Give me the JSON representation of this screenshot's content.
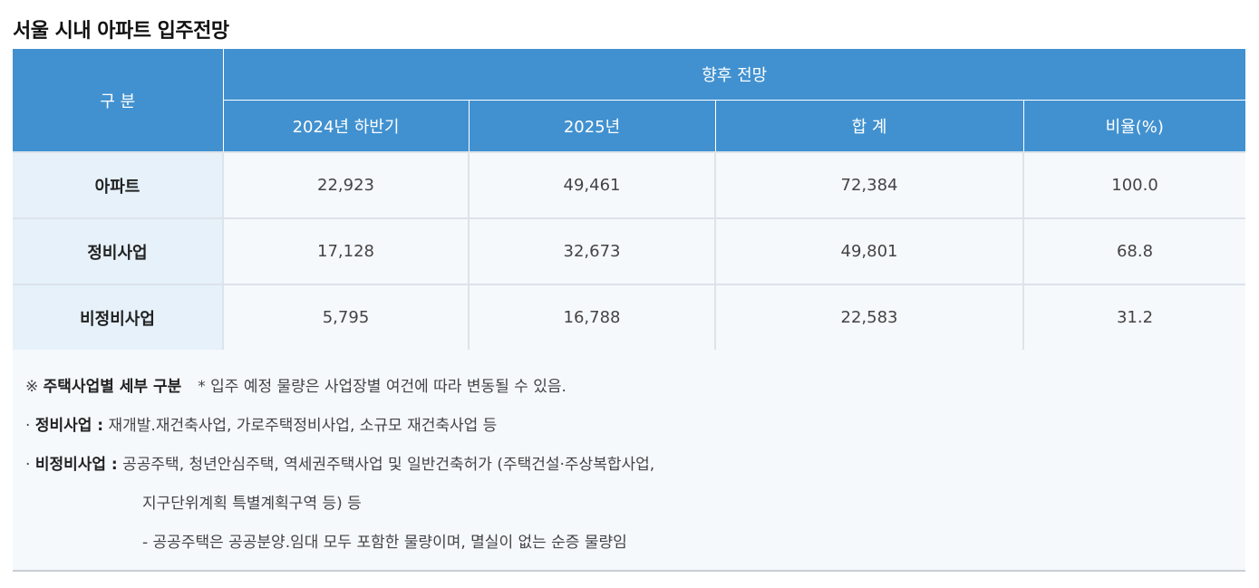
{
  "title": "서울 시내 아파트 입주전망",
  "table": {
    "header_gubun": "구 분",
    "header_future": "향후 전망",
    "columns": [
      "2024년 하반기",
      "2025년",
      "합 계",
      "비율(%)"
    ],
    "rows": [
      {
        "label": "아파트",
        "values": [
          "22,923",
          "49,461",
          "72,384",
          "100.0"
        ]
      },
      {
        "label": "정비사업",
        "values": [
          "17,128",
          "32,673",
          "49,801",
          "68.8"
        ]
      },
      {
        "label": "비정비사업",
        "values": [
          "5,795",
          "16,788",
          "22,583",
          "31.2"
        ]
      }
    ]
  },
  "notes": {
    "line1_prefix": "※ ",
    "line1_bold": "주택사업별 세부 구분",
    "line1_text": "* 입주 예정 물량은 사업장별 여건에 따라 변동될 수 있음.",
    "line2_bullet": "· ",
    "line2_bold": "정비사업 :",
    "line2_text": " 재개발.재건축사업, 가로주택정비사업, 소규모 재건축사업 등",
    "line3_bullet": "· ",
    "line3_bold": "비정비사업 :",
    "line3_text": " 공공주택, 청년안심주택, 역세권주택사업 및 일반건축허가 (주택건설·주상복합사업,",
    "line4_text": "지구단위계획 특별계획구역 등) 등",
    "line5_text": "- 공공주택은 공공분양.임대 모두 포함한 물량이며, 멸실이 없는 순증 물량임"
  },
  "colors": {
    "header_bg": "#4191d0",
    "rowhead_bg": "#e6f1fa",
    "cell_bg": "#f6f9fc"
  }
}
